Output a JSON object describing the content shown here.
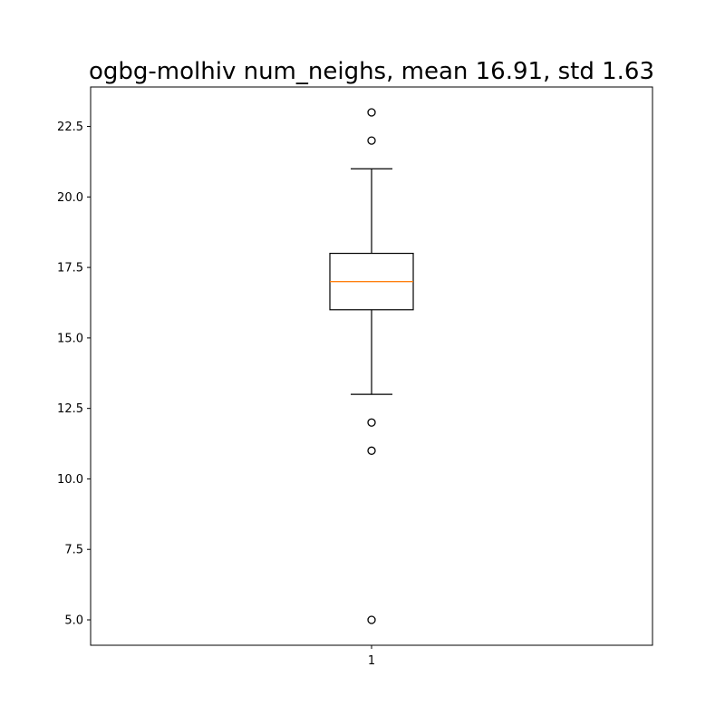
{
  "chart_data": {
    "type": "box",
    "title": "ogbg-molhiv num_neighs, mean 16.91, std 1.63",
    "categories": [
      "1"
    ],
    "ylim": [
      4.1,
      23.9
    ],
    "yticks": [
      5.0,
      7.5,
      10.0,
      12.5,
      15.0,
      17.5,
      20.0,
      22.5
    ],
    "ytick_labels": [
      "5.0",
      "7.5",
      "10.0",
      "12.5",
      "15.0",
      "17.5",
      "20.0",
      "22.5"
    ],
    "grid": false,
    "boxes": [
      {
        "category": "1",
        "whisker_low": 13,
        "q1": 16,
        "median": 17,
        "q3": 18,
        "whisker_high": 21,
        "outliers": [
          23,
          22,
          12,
          11,
          5
        ]
      }
    ],
    "colors": {
      "box": "#000000",
      "median": "#ff7f0e",
      "outlier": "#000000"
    }
  }
}
